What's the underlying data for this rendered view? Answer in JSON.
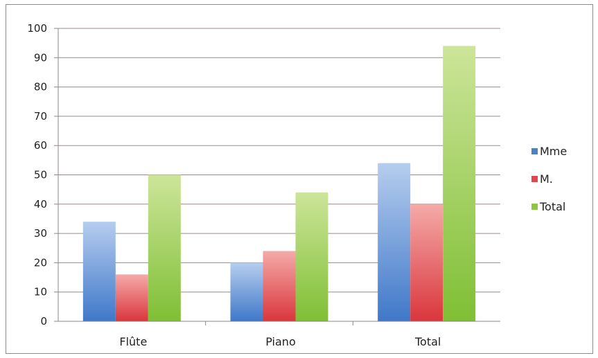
{
  "chart_data": {
    "type": "bar",
    "title": "",
    "xlabel": "",
    "ylabel": "",
    "categories": [
      "Flûte",
      "Piano",
      "Total"
    ],
    "series": [
      {
        "name": "Mme",
        "values": [
          34,
          20,
          54
        ],
        "color": "#4f81bd"
      },
      {
        "name": "M.",
        "values": [
          16,
          24,
          40
        ],
        "color": "#e0474c"
      },
      {
        "name": "Total",
        "values": [
          50,
          44,
          94
        ],
        "color": "#8ec63f"
      }
    ],
    "ylim": [
      0,
      100
    ],
    "yticks": [
      0,
      10,
      20,
      30,
      40,
      50,
      60,
      70,
      80,
      90,
      100
    ],
    "grid": true,
    "legend_position": "right"
  }
}
